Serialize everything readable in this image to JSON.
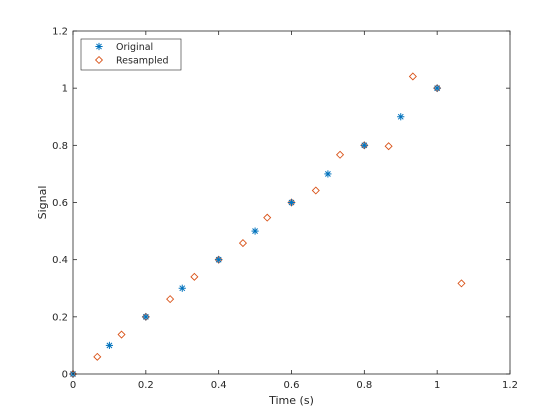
{
  "chart_data": {
    "type": "scatter",
    "title": "",
    "xlabel": "Time (s)",
    "ylabel": "Signal",
    "xlim": [
      0,
      1.2
    ],
    "ylim": [
      0,
      1.2
    ],
    "xticks": [
      "0",
      "0.2",
      "0.4",
      "0.6",
      "0.8",
      "1",
      "1.2"
    ],
    "yticks": [
      "0",
      "0.2",
      "0.4",
      "0.6",
      "0.8",
      "1",
      "1.2"
    ],
    "grid": false,
    "legend_position": "top-left",
    "series": [
      {
        "name": "Original",
        "marker": "asterisk",
        "color": "#0072BD",
        "x": [
          0,
          0.1,
          0.2,
          0.3,
          0.4,
          0.5,
          0.6,
          0.7,
          0.8,
          0.9,
          1.0
        ],
        "y": [
          0,
          0.1,
          0.2,
          0.3,
          0.4,
          0.5,
          0.6,
          0.7,
          0.8,
          0.9,
          1.0
        ]
      },
      {
        "name": "Resampled",
        "marker": "diamond",
        "color": "#D95319",
        "x": [
          0,
          0.0667,
          0.1333,
          0.2,
          0.2667,
          0.3333,
          0.4,
          0.4667,
          0.5333,
          0.6,
          0.6667,
          0.7333,
          0.8,
          0.8667,
          0.9333,
          1.0,
          1.0667
        ],
        "y": [
          0,
          0.06,
          0.138,
          0.2,
          0.262,
          0.34,
          0.4,
          0.458,
          0.547,
          0.6,
          0.642,
          0.767,
          0.8,
          0.797,
          1.041,
          1.0,
          0.317
        ]
      }
    ]
  }
}
